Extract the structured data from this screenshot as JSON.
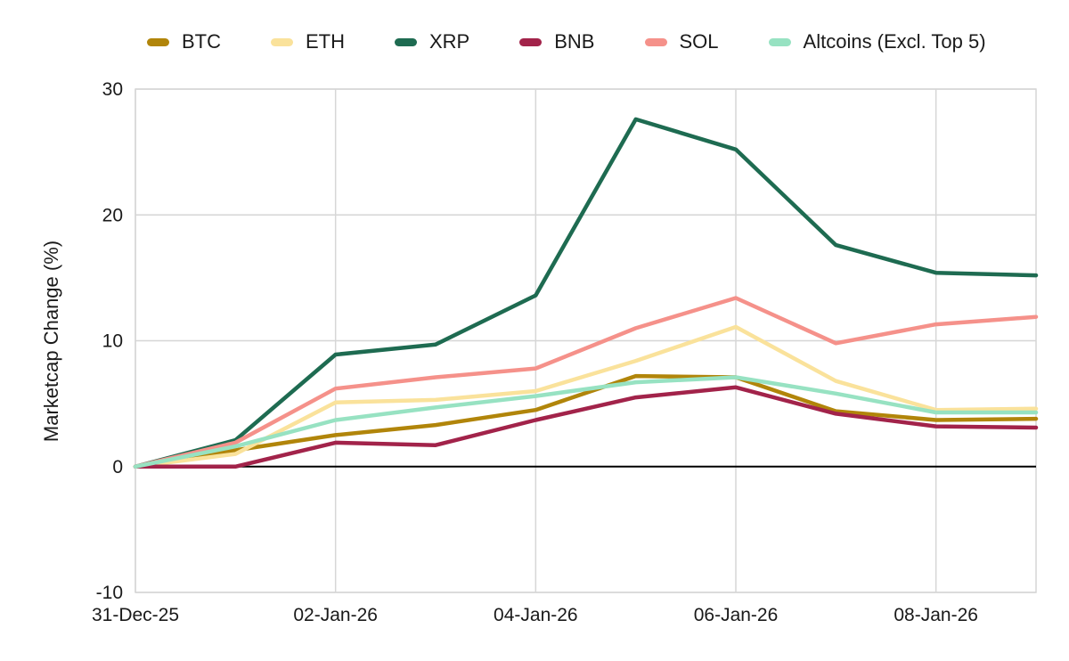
{
  "chart_data": {
    "type": "line",
    "title": "",
    "xlabel": "",
    "ylabel": "Marketcap Change (%)",
    "ylim": [
      -10,
      30
    ],
    "yticks": [
      30,
      20,
      10,
      0,
      -10
    ],
    "x": [
      "31-Dec-25",
      "01-Jan-26",
      "02-Jan-26",
      "03-Jan-26",
      "04-Jan-26",
      "05-Jan-26",
      "06-Jan-26",
      "07-Jan-26",
      "08-Jan-26",
      "09-Jan-26"
    ],
    "xtick_indices": [
      0,
      2,
      4,
      6,
      8
    ],
    "xtick_labels": [
      "31-Dec-25",
      "02-Jan-26",
      "04-Jan-26",
      "06-Jan-26",
      "08-Jan-26"
    ],
    "grid_on": true,
    "legend_position": "top",
    "series": [
      {
        "name": "BTC",
        "color": "#B1850A",
        "values": [
          0,
          1.3,
          2.5,
          3.3,
          4.5,
          7.2,
          7.1,
          4.4,
          3.7,
          3.8
        ]
      },
      {
        "name": "ETH",
        "color": "#FAE29B",
        "values": [
          0,
          1.0,
          5.1,
          5.3,
          6.0,
          8.4,
          11.1,
          6.8,
          4.5,
          4.6
        ]
      },
      {
        "name": "XRP",
        "color": "#1E6B51",
        "values": [
          0,
          2.1,
          8.9,
          9.7,
          13.6,
          27.6,
          25.2,
          17.6,
          15.4,
          15.2
        ]
      },
      {
        "name": "BNB",
        "color": "#A2234A",
        "values": [
          0,
          0.0,
          1.9,
          1.7,
          3.7,
          5.5,
          6.3,
          4.2,
          3.2,
          3.1
        ]
      },
      {
        "name": "SOL",
        "color": "#F5918A",
        "values": [
          0,
          1.9,
          6.2,
          7.1,
          7.8,
          11.0,
          13.4,
          9.8,
          11.3,
          11.9
        ]
      },
      {
        "name": "Altcoins (Excl. Top 5)",
        "color": "#97E2C2",
        "values": [
          0,
          1.6,
          3.7,
          4.7,
          5.6,
          6.7,
          7.1,
          5.8,
          4.3,
          4.3
        ]
      }
    ],
    "colors": {
      "grid": "#D6D6D6",
      "zero_line": "#000000",
      "text": "#1a1a1a",
      "background": "#ffffff"
    }
  }
}
